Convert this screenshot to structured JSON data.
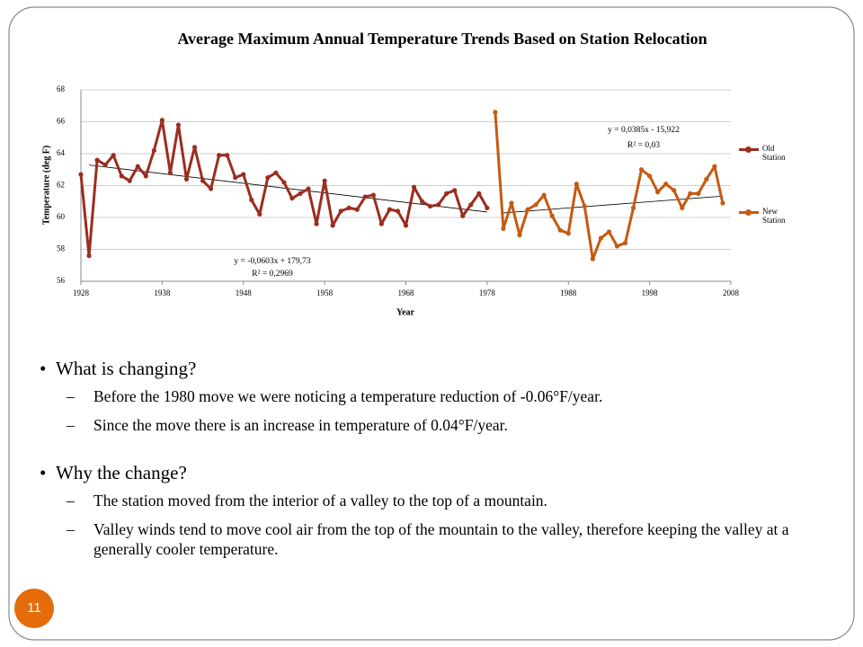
{
  "chart_data": {
    "type": "line",
    "title": "Average Maximum Annual Temperature Trends Based on Station Relocation",
    "xlabel": "Year",
    "ylabel": "Temperature (deg F)",
    "xlim": [
      1928,
      2008
    ],
    "xticks": [
      1928,
      1938,
      1948,
      1958,
      1968,
      1978,
      1988,
      1998,
      2008
    ],
    "ylim": [
      56,
      68
    ],
    "yticks": [
      56,
      58,
      60,
      62,
      64,
      66,
      68
    ],
    "grid": true,
    "legend": "right",
    "series": [
      {
        "name": "Old Station",
        "color": "#9b2d1f",
        "x": [
          1928,
          1929,
          1930,
          1931,
          1932,
          1933,
          1934,
          1935,
          1936,
          1937,
          1938,
          1939,
          1940,
          1941,
          1942,
          1943,
          1944,
          1945,
          1946,
          1947,
          1948,
          1949,
          1950,
          1951,
          1952,
          1953,
          1954,
          1955,
          1956,
          1957,
          1958,
          1959,
          1960,
          1961,
          1962,
          1963,
          1964,
          1965,
          1966,
          1967,
          1968,
          1969,
          1970,
          1971,
          1972,
          1973,
          1974,
          1975,
          1976,
          1977,
          1978
        ],
        "values": [
          62.7,
          57.6,
          63.6,
          63.3,
          63.9,
          62.6,
          62.3,
          63.2,
          62.6,
          64.2,
          66.1,
          62.8,
          65.8,
          62.4,
          64.4,
          62.3,
          61.8,
          63.9,
          63.9,
          62.5,
          62.7,
          61.1,
          60.2,
          62.5,
          62.8,
          62.2,
          61.2,
          61.5,
          61.8,
          59.6,
          62.3,
          59.5,
          60.4,
          60.6,
          60.5,
          61.3,
          61.4,
          59.6,
          60.5,
          60.4,
          59.5,
          61.9,
          61.0,
          60.7,
          60.8,
          61.5,
          61.7,
          60.1,
          60.8,
          61.5,
          60.6
        ]
      },
      {
        "name": "New Station",
        "color": "#c55a11",
        "x": [
          1979,
          1980,
          1981,
          1982,
          1983,
          1984,
          1985,
          1986,
          1987,
          1988,
          1989,
          1990,
          1991,
          1992,
          1993,
          1994,
          1995,
          1996,
          1997,
          1998,
          1999,
          2000,
          2001,
          2002,
          2003,
          2004,
          2005,
          2006,
          2007
        ],
        "values": [
          66.6,
          59.3,
          60.9,
          58.9,
          60.5,
          60.8,
          61.4,
          60.1,
          59.2,
          59.0,
          62.1,
          60.7,
          57.4,
          58.7,
          59.1,
          58.2,
          58.4,
          60.6,
          63.0,
          62.6,
          61.6,
          62.1,
          61.7,
          60.6,
          61.5,
          61.5,
          62.4,
          63.2,
          60.9
        ]
      }
    ],
    "annotations": [
      "y = -0,0603x + 179,73",
      "R² = 0,2969",
      "y = 0,0385x - 15,922",
      "R² = 0,03"
    ]
  },
  "bullets": [
    {
      "text": "What is changing?",
      "sub": [
        "Before the 1980 move we were noticing a temperature reduction of -0.06°F/year.",
        "Since the move there is an increase in temperature of 0.04°F/year."
      ]
    },
    {
      "text": "Why the change?",
      "sub": [
        "The station moved from the interior of a valley to the top of a mountain.",
        "Valley winds tend to move cool air from the top of the mountain to the valley, therefore keeping the valley at a generally cooler temperature."
      ]
    }
  ],
  "page_number": "11"
}
